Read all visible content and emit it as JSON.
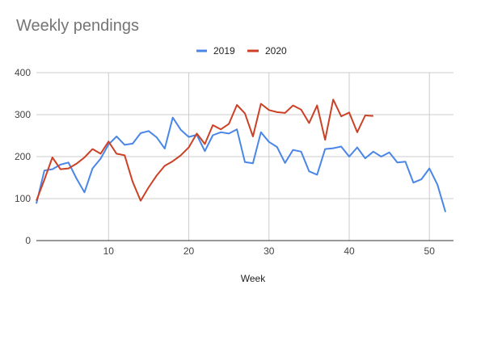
{
  "chart_data": {
    "type": "line",
    "title": "Weekly pendings",
    "xlabel": "Week",
    "ylabel": "",
    "xlim": [
      1,
      53
    ],
    "ylim": [
      0,
      400
    ],
    "x_ticks": [
      10,
      20,
      30,
      40,
      50
    ],
    "y_ticks": [
      0,
      100,
      200,
      300,
      400
    ],
    "grid": true,
    "legend_position": "top",
    "series": [
      {
        "name": "2019",
        "color": "#4a86e8",
        "x": [
          1,
          2,
          3,
          4,
          5,
          6,
          7,
          8,
          9,
          10,
          11,
          12,
          13,
          14,
          15,
          16,
          17,
          18,
          19,
          20,
          21,
          22,
          23,
          24,
          25,
          26,
          27,
          28,
          29,
          30,
          31,
          32,
          33,
          34,
          35,
          36,
          37,
          38,
          39,
          40,
          41,
          42,
          43,
          44,
          45,
          46,
          47,
          48,
          49,
          50,
          51,
          52
        ],
        "values": [
          88,
          167,
          170,
          181,
          186,
          148,
          115,
          172,
          195,
          229,
          248,
          228,
          231,
          256,
          261,
          246,
          219,
          293,
          264,
          247,
          252,
          213,
          251,
          258,
          255,
          265,
          187,
          184,
          258,
          235,
          223,
          185,
          216,
          212,
          165,
          157,
          218,
          220,
          224,
          200,
          222,
          196,
          212,
          200,
          210,
          186,
          188,
          138,
          146,
          172,
          133,
          68
        ]
      },
      {
        "name": "2020",
        "color": "#cc4125",
        "x": [
          1,
          2,
          3,
          4,
          5,
          6,
          7,
          8,
          9,
          10,
          11,
          12,
          13,
          14,
          15,
          16,
          17,
          18,
          19,
          20,
          21,
          22,
          23,
          24,
          25,
          26,
          27,
          28,
          29,
          30,
          31,
          32,
          33,
          34,
          35,
          36,
          37,
          38,
          39,
          40,
          41,
          42,
          43
        ],
        "values": [
          95,
          145,
          198,
          170,
          172,
          183,
          198,
          218,
          207,
          236,
          207,
          203,
          140,
          95,
          127,
          155,
          178,
          189,
          203,
          222,
          255,
          230,
          275,
          265,
          278,
          323,
          303,
          248,
          326,
          311,
          306,
          304,
          322,
          312,
          280,
          322,
          240,
          336,
          296,
          305,
          258,
          298,
          297
        ]
      }
    ]
  }
}
